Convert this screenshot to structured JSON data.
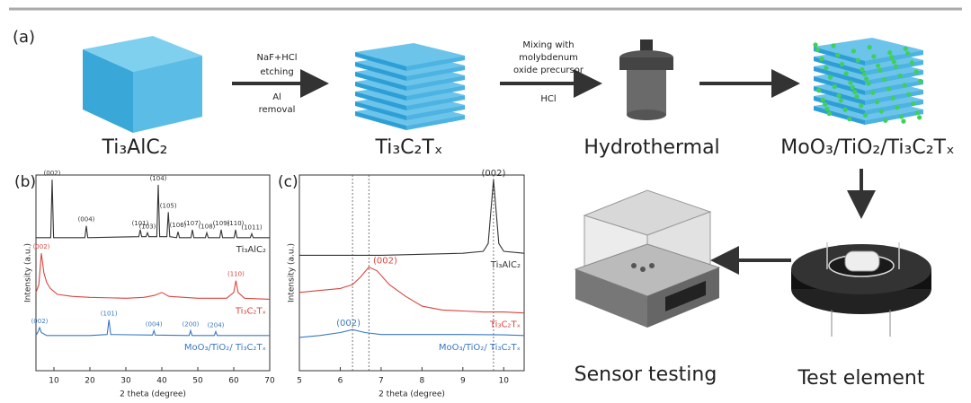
{
  "panel_a": {
    "label": "(a)",
    "steps": [
      "Ti₃AlC₂",
      "Ti₃C₂Tₓ",
      "Hydrothermal",
      "MoO₃/TiO₂/Ti₃C₂Tₓ"
    ],
    "arrows": [
      [
        "NaF+HCl",
        "etching",
        "Al",
        "removal"
      ],
      [
        "Mixing with",
        "molybdenum",
        "oxide precursor",
        "HCl"
      ]
    ],
    "bottom_steps": [
      "Test element",
      "Sensor testing"
    ]
  },
  "chart_data": [
    {
      "type": "line",
      "panel_label": "(b)",
      "xlabel": "2 theta (degree)",
      "ylabel": "Intensity (a.u.)",
      "xlim": [
        5,
        70
      ],
      "xticks": [
        10,
        20,
        30,
        40,
        50,
        60,
        70
      ],
      "ylim": [
        0,
        100
      ],
      "series": [
        {
          "name": "Ti₃AlC₂",
          "color": "#333333",
          "x": [
            5,
            9.1,
            9.5,
            9.9,
            18.6,
            19,
            19.4,
            33.6,
            34,
            34.4,
            35.6,
            36,
            36.4,
            38.6,
            39,
            39.4,
            41.4,
            41.8,
            42.2,
            44.1,
            44.5,
            44.9,
            48.1,
            48.5,
            48.9,
            52.1,
            52.5,
            52.9,
            56.1,
            56.5,
            56.9,
            60.1,
            60.5,
            60.9,
            64.6,
            65,
            65.4,
            70
          ],
          "values": [
            68,
            68,
            97.6,
            68,
            68,
            74,
            68,
            68.5,
            72,
            68.5,
            68.5,
            70.5,
            68.5,
            68.5,
            95,
            68.5,
            68.5,
            81,
            68.5,
            68,
            71,
            68,
            68,
            72,
            68,
            68,
            70.5,
            68,
            68,
            72,
            68,
            68,
            72,
            68,
            68,
            70,
            68,
            68
          ],
          "peaks": [
            {
              "label": "(002)",
              "x": 9.5
            },
            {
              "label": "(004)",
              "x": 19
            },
            {
              "label": "(101)",
              "x": 34
            },
            {
              "label": "(103)",
              "x": 36
            },
            {
              "label": "(104)",
              "x": 39
            },
            {
              "label": "(105)",
              "x": 41.8
            },
            {
              "label": "(106)",
              "x": 44.5
            },
            {
              "label": "(107)",
              "x": 48.5
            },
            {
              "label": "(108)",
              "x": 52.5
            },
            {
              "label": "(109)",
              "x": 56.5
            },
            {
              "label": "(110)",
              "x": 60.5
            },
            {
              "label": "(1011)",
              "x": 65
            }
          ]
        },
        {
          "name": "Ti₃C₂Tₓ",
          "color": "#d9453f",
          "x": [
            5,
            5.8,
            6.5,
            7.2,
            8,
            9,
            11,
            15,
            20,
            30,
            35,
            38,
            40,
            42,
            50,
            58,
            60,
            60.6,
            61.2,
            63,
            70
          ],
          "values": [
            40,
            44,
            60,
            50,
            45,
            42,
            39,
            38,
            37.5,
            37,
            37.5,
            38.5,
            40,
            38,
            37,
            37,
            40,
            46,
            40,
            37,
            36.5
          ],
          "peaks": [
            {
              "label": "(002)",
              "x": 6.5
            },
            {
              "label": "(110)",
              "x": 60.6
            }
          ]
        },
        {
          "name": "MoO₃/TiO₂/ Ti₃C₂Tₓ",
          "color": "#3a78c2",
          "x": [
            5,
            5.6,
            6,
            6.5,
            8,
            20,
            24.8,
            25.3,
            25.8,
            37.4,
            37.8,
            38.2,
            47.6,
            48,
            48.4,
            54.6,
            55,
            55.4,
            70
          ],
          "values": [
            18,
            20,
            22,
            19.5,
            18,
            18,
            18.5,
            26,
            18.5,
            18.2,
            20.5,
            18.2,
            18,
            20.5,
            18,
            18,
            20,
            18,
            18
          ],
          "peaks": [
            {
              "label": "(002)",
              "x": 6
            },
            {
              "label": "(101)",
              "x": 25.3
            },
            {
              "label": "(004)",
              "x": 37.8
            },
            {
              "label": "(200)",
              "x": 48
            },
            {
              "label": "(204)",
              "x": 55
            }
          ]
        }
      ]
    },
    {
      "type": "line",
      "panel_label": "(c)",
      "xlabel": "2 theta (degree)",
      "ylabel": "Intensity (a.u.)",
      "xlim": [
        5,
        10.5
      ],
      "xticks": [
        5,
        6,
        7,
        8,
        9,
        10
      ],
      "ylim": [
        0,
        100
      ],
      "vlines": [
        6.3,
        6.7,
        9.75
      ],
      "series": [
        {
          "name": "Ti₃AlC₂",
          "color": "#333333",
          "x": [
            5,
            6,
            7,
            8,
            9,
            9.5,
            9.62,
            9.7,
            9.75,
            9.8,
            9.88,
            10,
            10.5
          ],
          "values": [
            59,
            59,
            59,
            59.5,
            60,
            61,
            65,
            85,
            97.6,
            85,
            65,
            61,
            60
          ],
          "peaks": [
            {
              "label": "(002)",
              "x": 9.75
            }
          ]
        },
        {
          "name": "Ti₃C₂Tₓ",
          "color": "#d9453f",
          "x": [
            5,
            5.5,
            6,
            6.3,
            6.5,
            6.7,
            6.9,
            7.2,
            7.6,
            8,
            8.5,
            9,
            9.5,
            10,
            10.5
          ],
          "values": [
            40,
            41,
            42,
            44,
            48,
            53,
            51,
            44,
            38,
            33,
            31,
            30.5,
            30,
            30,
            29.5
          ],
          "peaks": [
            {
              "label": "(002)",
              "x": 7.1
            }
          ]
        },
        {
          "name": "MoO₃/TiO₂/ Ti₃C₂Tₓ",
          "color": "#3a78c2",
          "x": [
            5,
            5.5,
            6,
            6.3,
            6.6,
            7,
            8,
            9,
            10,
            10.5
          ],
          "values": [
            17,
            18,
            19.5,
            21,
            19.5,
            18.5,
            18.5,
            18.5,
            18.3,
            18
          ],
          "peaks": [
            {
              "label": "(002)",
              "x": 6.2
            }
          ]
        }
      ]
    }
  ]
}
